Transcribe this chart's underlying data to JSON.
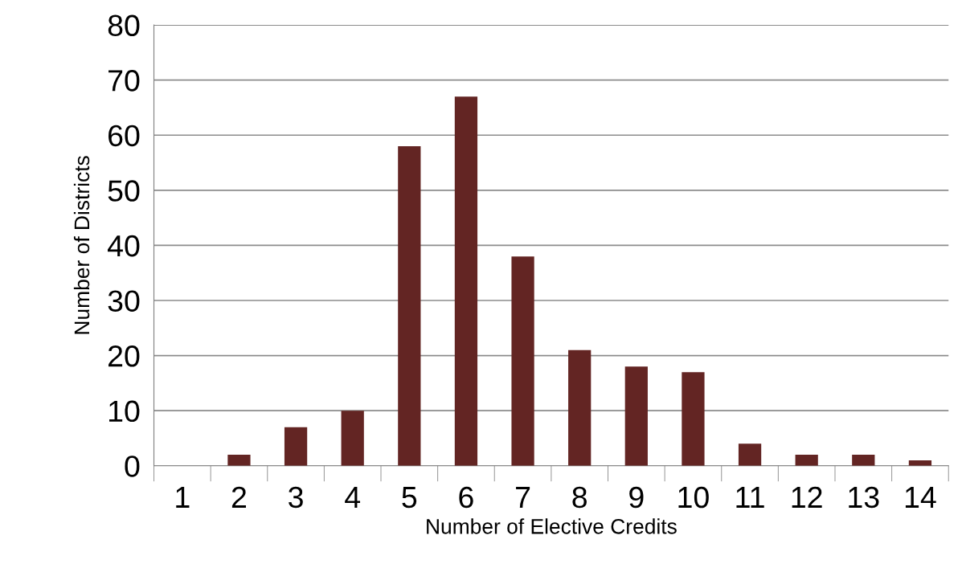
{
  "chart_data": {
    "type": "bar",
    "xlabel": "Number of Elective Credits",
    "ylabel": "Number of Districts",
    "categories": [
      "1",
      "2",
      "3",
      "4",
      "5",
      "6",
      "7",
      "8",
      "9",
      "10",
      "11",
      "12",
      "13",
      "14"
    ],
    "values": [
      0,
      2,
      7,
      10,
      58,
      67,
      38,
      21,
      18,
      17,
      4,
      2,
      2,
      1
    ],
    "color": "#632523",
    "ylim": [
      0,
      80
    ],
    "yticks": [
      0,
      10,
      20,
      30,
      40,
      50,
      60,
      70,
      80
    ],
    "grid": "y",
    "legend": false
  }
}
